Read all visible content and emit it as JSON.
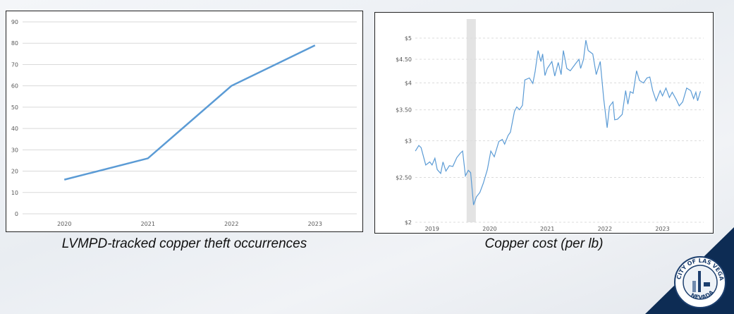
{
  "colors": {
    "line": "#5b9bd5",
    "navy": "#0d2c54",
    "recession": "#e3e3e3"
  },
  "logo": {
    "text": "CITY OF LAS VEGAS NEVADA",
    "icon": "city-seal"
  },
  "chart_data": [
    {
      "type": "line",
      "title": "",
      "caption": "LVMPD-tracked copper theft occurrences",
      "xlabel": "",
      "ylabel": "",
      "categories": [
        "2020",
        "2021",
        "2022",
        "2023"
      ],
      "values": [
        16,
        26,
        60,
        79
      ],
      "ylim": [
        0,
        90
      ],
      "yticks": [
        0,
        10,
        20,
        30,
        40,
        50,
        60,
        70,
        80,
        90
      ],
      "grid": true,
      "legend": "none"
    },
    {
      "type": "line",
      "title": "",
      "caption": "Copper cost (per lb)",
      "xlabel": "",
      "ylabel": "",
      "y_scale": "log",
      "ylim": [
        2,
        5.3
      ],
      "yticks": [
        {
          "v": 2,
          "label": "$2"
        },
        {
          "v": 2.5,
          "label": "$2.50"
        },
        {
          "v": 3,
          "label": "$3"
        },
        {
          "v": 3.5,
          "label": "$3.50"
        },
        {
          "v": 4,
          "label": "$4"
        },
        {
          "v": 4.5,
          "label": "$4.50"
        },
        {
          "v": 5,
          "label": "$5"
        }
      ],
      "xticks": [
        {
          "v": 2019.53,
          "label": "2019"
        },
        {
          "v": 2020.53,
          "label": "2020"
        },
        {
          "v": 2021.53,
          "label": "2021"
        },
        {
          "v": 2022.53,
          "label": "2022"
        },
        {
          "v": 2023.53,
          "label": "2023"
        }
      ],
      "recession_band": [
        2020.13,
        2020.29
      ],
      "grid": "dashed-horizontal",
      "legend": "none",
      "x": [
        2019.24,
        2019.3,
        2019.34,
        2019.42,
        2019.49,
        2019.53,
        2019.58,
        2019.62,
        2019.68,
        2019.72,
        2019.77,
        2019.83,
        2019.89,
        2019.96,
        2020.02,
        2020.06,
        2020.11,
        2020.16,
        2020.2,
        2020.25,
        2020.3,
        2020.36,
        2020.42,
        2020.49,
        2020.55,
        2020.61,
        2020.69,
        2020.75,
        2020.79,
        2020.85,
        2020.89,
        2020.96,
        2021.0,
        2021.05,
        2021.1,
        2021.14,
        2021.22,
        2021.28,
        2021.32,
        2021.37,
        2021.42,
        2021.45,
        2021.49,
        2021.53,
        2021.61,
        2021.66,
        2021.72,
        2021.77,
        2021.81,
        2021.87,
        2021.93,
        2022.02,
        2022.08,
        2022.11,
        2022.16,
        2022.2,
        2022.24,
        2022.32,
        2022.38,
        2022.45,
        2022.51,
        2022.57,
        2022.61,
        2022.67,
        2022.7,
        2022.75,
        2022.83,
        2022.89,
        2022.93,
        2022.97,
        2023.02,
        2023.08,
        2023.13,
        2023.2,
        2023.26,
        2023.31,
        2023.36,
        2023.42,
        2023.49,
        2023.53,
        2023.59,
        2023.65,
        2023.7,
        2023.77,
        2023.82,
        2023.88,
        2023.95,
        2024.02,
        2024.07,
        2024.11,
        2024.14,
        2024.19
      ],
      "y": [
        2.85,
        2.93,
        2.9,
        2.66,
        2.7,
        2.66,
        2.75,
        2.6,
        2.55,
        2.7,
        2.58,
        2.65,
        2.64,
        2.76,
        2.82,
        2.85,
        2.52,
        2.59,
        2.56,
        2.18,
        2.27,
        2.32,
        2.43,
        2.6,
        2.85,
        2.77,
        2.99,
        3.02,
        2.95,
        3.08,
        3.13,
        3.47,
        3.55,
        3.5,
        3.58,
        4.06,
        4.1,
        3.99,
        4.24,
        4.7,
        4.45,
        4.62,
        4.15,
        4.3,
        4.45,
        4.14,
        4.43,
        4.17,
        4.7,
        4.3,
        4.25,
        4.4,
        4.5,
        4.3,
        4.5,
        4.95,
        4.7,
        4.62,
        4.17,
        4.45,
        3.7,
        3.2,
        3.56,
        3.64,
        3.33,
        3.34,
        3.42,
        3.85,
        3.6,
        3.83,
        3.8,
        4.25,
        4.05,
        4.0,
        4.1,
        4.12,
        3.85,
        3.66,
        3.85,
        3.75,
        3.9,
        3.72,
        3.82,
        3.68,
        3.57,
        3.64,
        3.9,
        3.85,
        3.7,
        3.82,
        3.66,
        3.84
      ]
    }
  ]
}
